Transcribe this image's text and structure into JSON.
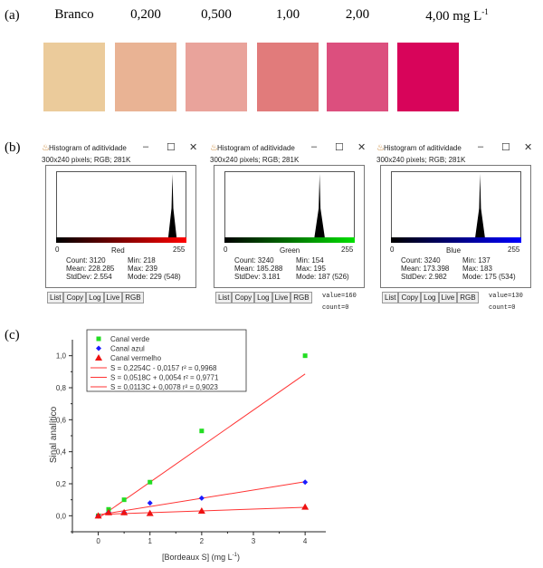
{
  "panel_a": {
    "label": "(a)",
    "samples": [
      {
        "label": "Branco",
        "color": "#ebcb9b"
      },
      {
        "label": "0,200",
        "color": "#e9b394"
      },
      {
        "label": "0,500",
        "color": "#e9a39b"
      },
      {
        "label": "1,00",
        "color": "#e17b7b"
      },
      {
        "label": "2,00",
        "color": "#dc4f7e"
      },
      {
        "label": "4,00 mg L",
        "color": "#d8045a",
        "superscript": "-1"
      }
    ]
  },
  "panel_b": {
    "label": "(b)",
    "windows": [
      {
        "title": "Histogram of aditividade",
        "subtitle": "300x240 pixels; RGB; 281K",
        "channel": "Red",
        "color": "#ff0000",
        "axis_min": "0",
        "axis_max": "255",
        "count": "Count: 3120",
        "mean": "Mean: 228.285",
        "stddev": "StdDev: 2.554",
        "min": "Min: 218",
        "max": "Max: 239",
        "mode": "Mode: 229 (548)",
        "mode_value": 229,
        "sd_value": 2.554,
        "value_text": "",
        "count_text": ""
      },
      {
        "title": "Histogram of aditividade",
        "subtitle": "300x240 pixels; RGB; 281K",
        "channel": "Green",
        "color": "#00e000",
        "axis_min": "0",
        "axis_max": "255",
        "count": "Count: 3240",
        "mean": "Mean: 185.288",
        "stddev": "StdDev: 3.181",
        "min": "Min: 154",
        "max": "Max: 195",
        "mode": "Mode: 187 (526)",
        "mode_value": 187,
        "sd_value": 3.181,
        "value_text": "value=160",
        "count_text": "count=0"
      },
      {
        "title": "Histogram of aditividade",
        "subtitle": "300x240 pixels; RGB; 281K",
        "channel": "Blue",
        "color": "#0000ff",
        "axis_min": "0",
        "axis_max": "255",
        "count": "Count: 3240",
        "mean": "Mean: 173.398",
        "stddev": "StdDev: 2.982",
        "min": "Min: 137",
        "max": "Max: 183",
        "mode": "Mode: 175 (534)",
        "mode_value": 175,
        "sd_value": 2.982,
        "value_text": "value=130",
        "count_text": "count=0"
      }
    ],
    "buttons": [
      "List",
      "Copy",
      "Log",
      "Live",
      "RGB"
    ],
    "window_controls": {
      "minimize": "–",
      "maximize": "☐",
      "close": "✕"
    }
  },
  "panel_c": {
    "label": "(c)"
  },
  "chart_data": {
    "type": "scatter",
    "xlabel": "[Bordeaux S] (mg L",
    "xlabel_sup": "-1",
    "xlabel_end": ")",
    "ylabel": "Sinal analítico",
    "xlim": [
      -0.5,
      4.4
    ],
    "ylim": [
      -0.1,
      1.1
    ],
    "xticks": [
      0,
      1,
      2,
      3,
      4
    ],
    "xtick_labels": [
      "0",
      "1",
      "2",
      "3",
      "4"
    ],
    "yticks": [
      0,
      0.2,
      0.4,
      0.6,
      0.8,
      1.0
    ],
    "ytick_labels": [
      "0,0",
      "0,2",
      "0,4",
      "0,6",
      "0,8",
      "1,0"
    ],
    "legend_position": "top-left",
    "series": [
      {
        "name": "Canal verde",
        "color": "#22dd22",
        "marker": "square",
        "x": [
          0,
          0.2,
          0.5,
          1,
          2,
          4
        ],
        "y": [
          0.0,
          0.04,
          0.1,
          0.21,
          0.53,
          1.0
        ]
      },
      {
        "name": "Canal azul",
        "color": "#1a1aff",
        "marker": "diamond",
        "x": [
          0,
          0.2,
          0.5,
          1,
          2,
          4
        ],
        "y": [
          0.0,
          0.02,
          0.02,
          0.08,
          0.11,
          0.21
        ]
      },
      {
        "name": "Canal vermelho",
        "color": "#ee1111",
        "marker": "triangle",
        "x": [
          0,
          0.2,
          0.5,
          1,
          2,
          4
        ],
        "y": [
          0.0,
          0.02,
          0.02,
          0.015,
          0.03,
          0.055
        ]
      }
    ],
    "fits": [
      {
        "label": "S = 0,2254C - 0,0157  r² = 0,9968",
        "slope": 0.2254,
        "intercept": -0.0157,
        "color": "#ff3333"
      },
      {
        "label": "S = 0,0518C + 0,0054  r² = 0,9771",
        "slope": 0.0518,
        "intercept": 0.0054,
        "color": "#ff3333"
      },
      {
        "label": "S = 0,0113C + 0,0078  r² = 0,9023",
        "slope": 0.0113,
        "intercept": 0.0078,
        "color": "#ff3333"
      }
    ]
  }
}
